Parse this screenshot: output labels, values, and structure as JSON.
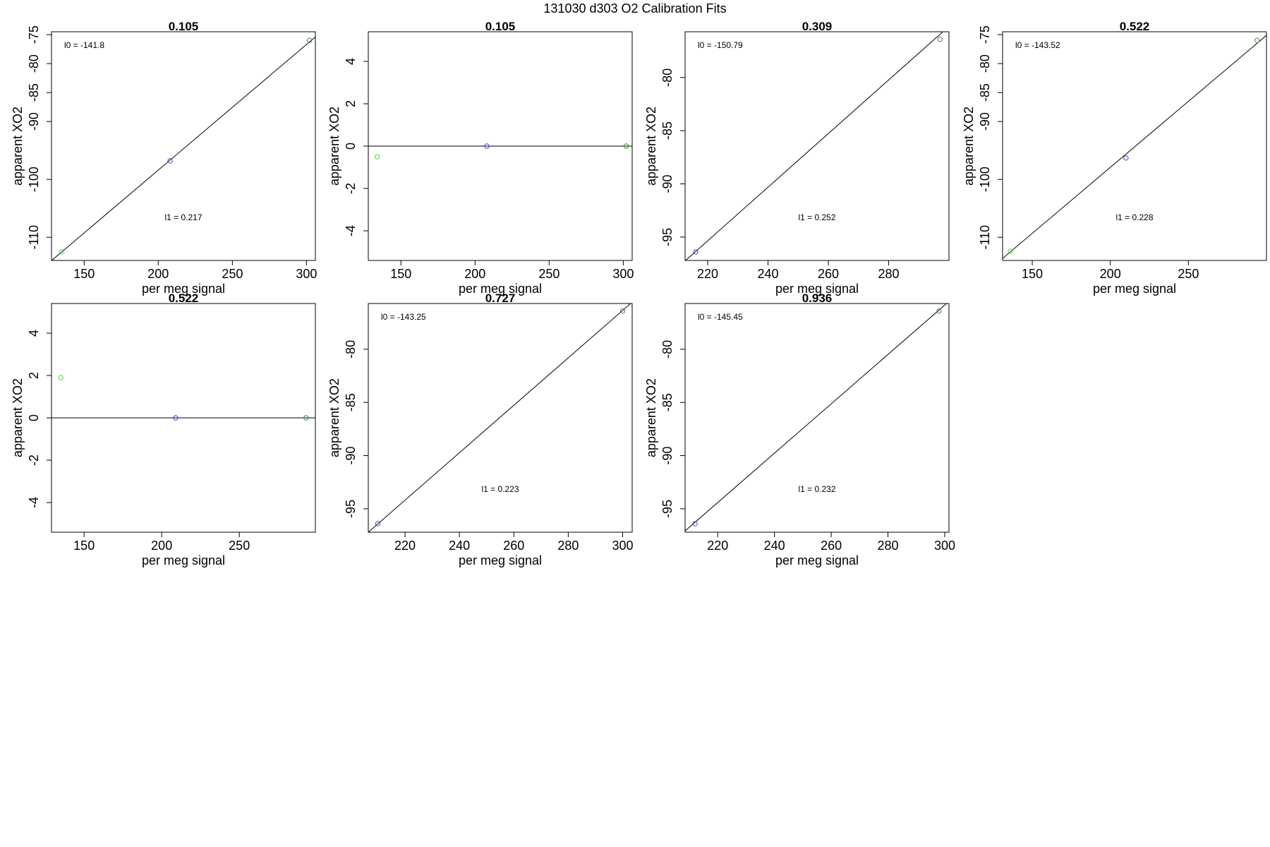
{
  "title": "131030   d303   O2 Calibration Fits",
  "chart_data": [
    {
      "type": "scatter",
      "title": "0.105",
      "xlabel": "per meg signal",
      "ylabel": "apparent XO2",
      "xlim": [
        128,
        306
      ],
      "ylim": [
        -114,
        -74.5
      ],
      "xticks": [
        150,
        200,
        250,
        300
      ],
      "yticks": [
        -110,
        -100,
        -90,
        -85,
        -80,
        -75
      ],
      "points": [
        {
          "x": 135,
          "y": -112.5,
          "color": "#44dd44"
        },
        {
          "x": 208,
          "y": -96.8,
          "color": "#4444dd"
        },
        {
          "x": 302,
          "y": -76.0,
          "color": "#448844"
        }
      ],
      "fit": {
        "intercept": -141.8,
        "slope": 0.217
      },
      "annotations": {
        "intercept_text": "l0 =  -141.8",
        "slope_text": "l1 =  0.217"
      }
    },
    {
      "type": "scatter",
      "title": "0.105",
      "xlabel": "per meg signal",
      "ylabel": "apparent XO2",
      "xlim": [
        128,
        306
      ],
      "ylim": [
        -5.4,
        5.4
      ],
      "xticks": [
        150,
        200,
        250,
        300
      ],
      "yticks": [
        -4,
        -2,
        0,
        2,
        4
      ],
      "points": [
        {
          "x": 134,
          "y": -0.5,
          "color": "#44dd44"
        },
        {
          "x": 208,
          "y": 0.0,
          "color": "#4444dd"
        },
        {
          "x": 302,
          "y": 0.0,
          "color": "#448844"
        }
      ],
      "fit": {
        "intercept": 0,
        "slope": 0
      },
      "annotations": {
        "intercept_text": "",
        "slope_text": ""
      }
    },
    {
      "type": "scatter",
      "title": "0.309",
      "xlabel": "per meg signal",
      "ylabel": "apparent XO2",
      "xlim": [
        212.5,
        300
      ],
      "ylim": [
        -97.2,
        -75.7
      ],
      "xticks": [
        220,
        240,
        260,
        280
      ],
      "yticks": [
        -95,
        -90,
        -85,
        -80
      ],
      "points": [
        {
          "x": 216,
          "y": -96.4,
          "color": "#4444dd"
        },
        {
          "x": 297,
          "y": -76.4,
          "color": "#448844"
        }
      ],
      "fit": {
        "intercept": -150.79,
        "slope": 0.252
      },
      "annotations": {
        "intercept_text": "l0 =  -150.79",
        "slope_text": "l1 =  0.252"
      }
    },
    {
      "type": "scatter",
      "title": "0.522",
      "xlabel": "per meg signal",
      "ylabel": "apparent XO2",
      "xlim": [
        131,
        300
      ],
      "ylim": [
        -114,
        -74.5
      ],
      "xticks": [
        150,
        200,
        250
      ],
      "yticks": [
        -110,
        -100,
        -90,
        -85,
        -80,
        -75
      ],
      "points": [
        {
          "x": 136,
          "y": -112.4,
          "color": "#44dd44"
        },
        {
          "x": 210,
          "y": -96.3,
          "color": "#4444dd"
        },
        {
          "x": 294,
          "y": -76.0,
          "color": "#448844"
        }
      ],
      "fit": {
        "intercept": -143.52,
        "slope": 0.228
      },
      "annotations": {
        "intercept_text": "l0 =  -143.52",
        "slope_text": "l1 =  0.228"
      }
    },
    {
      "type": "scatter",
      "title": "0.522",
      "xlabel": "per meg signal",
      "ylabel": "apparent XO2",
      "xlim": [
        129,
        299
      ],
      "ylim": [
        -5.4,
        5.4
      ],
      "xticks": [
        150,
        200,
        250
      ],
      "yticks": [
        -4,
        -2,
        0,
        2,
        4
      ],
      "points": [
        {
          "x": 135,
          "y": 1.9,
          "color": "#44dd44"
        },
        {
          "x": 209,
          "y": 0.0,
          "color": "#4444dd"
        },
        {
          "x": 293,
          "y": 0.0,
          "color": "#448844"
        }
      ],
      "fit": {
        "intercept": 0,
        "slope": 0
      },
      "annotations": {
        "intercept_text": "",
        "slope_text": ""
      }
    },
    {
      "type": "scatter",
      "title": "0.727",
      "xlabel": "per meg signal",
      "ylabel": "apparent XO2",
      "xlim": [
        206.5,
        303.5
      ],
      "ylim": [
        -97.2,
        -75.7
      ],
      "xticks": [
        220,
        240,
        260,
        280,
        300
      ],
      "yticks": [
        -95,
        -90,
        -85,
        -80
      ],
      "points": [
        {
          "x": 210,
          "y": -96.4,
          "color": "#4444dd"
        },
        {
          "x": 300,
          "y": -76.4,
          "color": "#448844"
        }
      ],
      "fit": {
        "intercept": -143.25,
        "slope": 0.223
      },
      "annotations": {
        "intercept_text": "l0 =  -143.25",
        "slope_text": "l1 =  0.223"
      }
    },
    {
      "type": "scatter",
      "title": "0.936",
      "xlabel": "per meg signal",
      "ylabel": "apparent XO2",
      "xlim": [
        208.5,
        301.5
      ],
      "ylim": [
        -97.2,
        -75.7
      ],
      "xticks": [
        220,
        240,
        260,
        280,
        300
      ],
      "yticks": [
        -95,
        -90,
        -85,
        -80
      ],
      "points": [
        {
          "x": 212,
          "y": -96.4,
          "color": "#4444dd"
        },
        {
          "x": 298,
          "y": -76.4,
          "color": "#448844"
        }
      ],
      "fit": {
        "intercept": -145.45,
        "slope": 0.232
      },
      "annotations": {
        "intercept_text": "l0 =  -145.45",
        "slope_text": "l1 =  0.232"
      }
    }
  ]
}
